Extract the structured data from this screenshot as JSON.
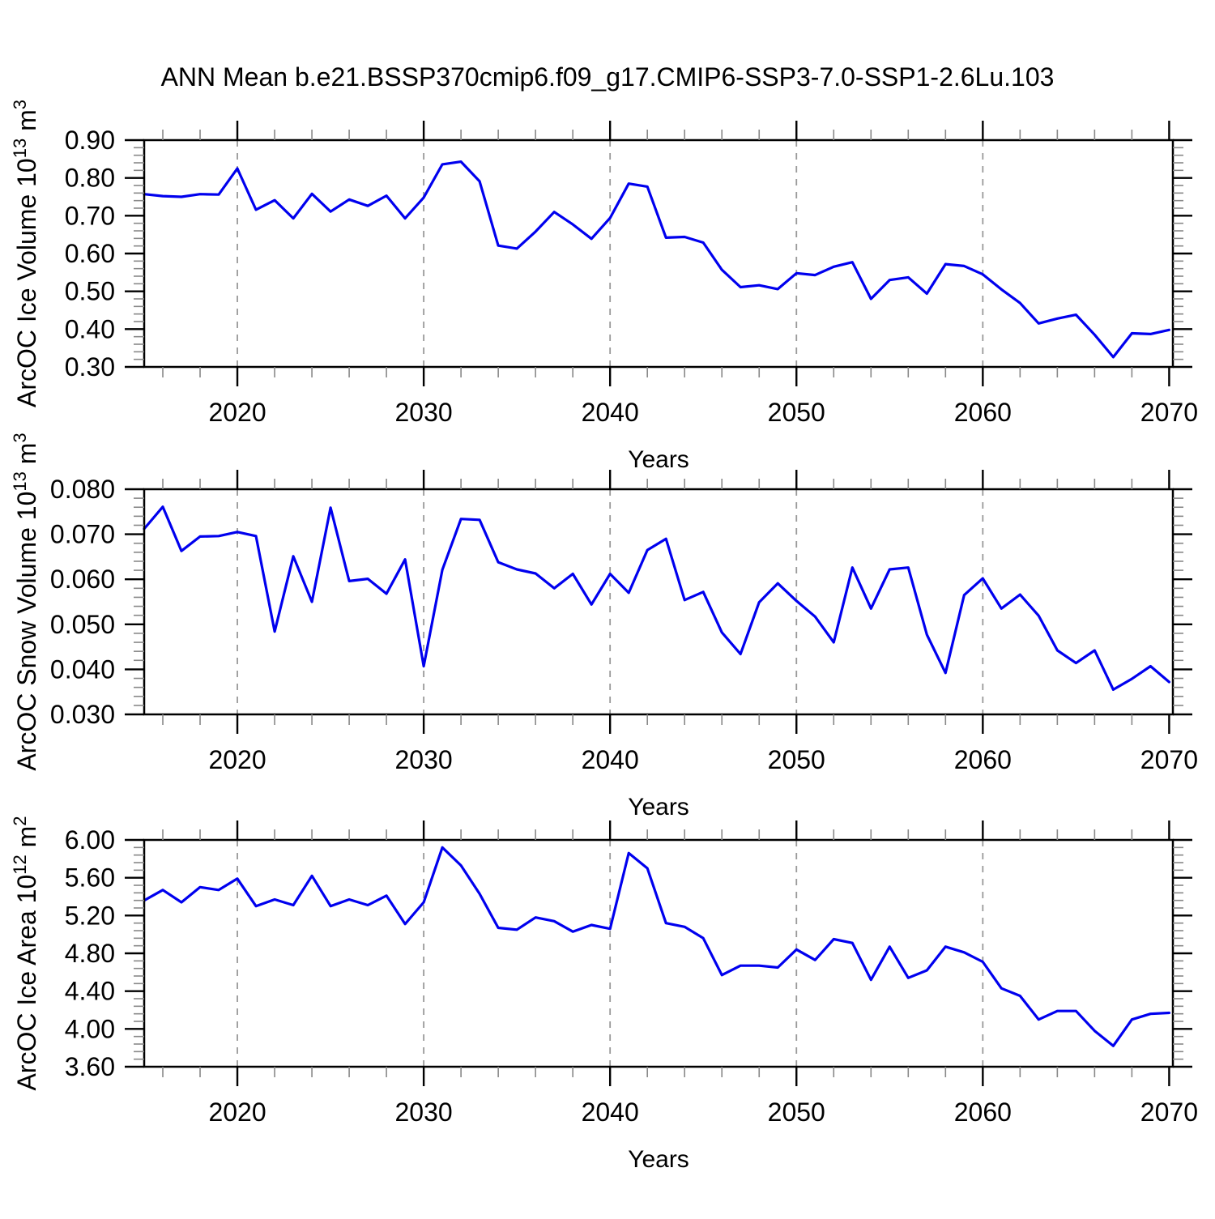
{
  "chart_data": {
    "type": "line",
    "title": "ANN Mean b.e21.BSSP370cmip6.f09_g17.CMIP6-SSP3-7.0-SSP1-2.6Lu.103",
    "xlabel": "Years",
    "line_color": "#0000ee",
    "grid_color": "#999999",
    "frame_color": "#000000",
    "x": {
      "min": 2015,
      "max": 2070.2,
      "major_ticks": [
        2020,
        2030,
        2040,
        2050,
        2060,
        2070
      ],
      "minor_step": 2,
      "gridline_years": [
        2020,
        2030,
        2040,
        2050,
        2060
      ],
      "grid_on": true,
      "legend": "none"
    },
    "years": [
      2015,
      2016,
      2017,
      2018,
      2019,
      2020,
      2021,
      2022,
      2023,
      2024,
      2025,
      2026,
      2027,
      2028,
      2029,
      2030,
      2031,
      2032,
      2033,
      2034,
      2035,
      2036,
      2037,
      2038,
      2039,
      2040,
      2041,
      2042,
      2043,
      2044,
      2045,
      2046,
      2047,
      2048,
      2049,
      2050,
      2051,
      2052,
      2053,
      2054,
      2055,
      2056,
      2057,
      2058,
      2059,
      2060,
      2061,
      2062,
      2063,
      2064,
      2065,
      2066,
      2067,
      2068,
      2069,
      2070
    ],
    "panels": [
      {
        "id": "ice-volume",
        "ylabel_text": "ArcOC Ice Volume 10^13 m^3",
        "ylabel_parts": [
          {
            "t": "ArcOC Ice Volume 10"
          },
          {
            "t": "13",
            "sup": true
          },
          {
            "t": " m"
          },
          {
            "t": "3",
            "sup": true
          }
        ],
        "ylim": [
          0.3,
          0.9
        ],
        "ytick_step": 0.1,
        "yminor_step": 0.02,
        "ytick_decimals": 2,
        "values": [
          0.757,
          0.752,
          0.75,
          0.757,
          0.756,
          0.825,
          0.716,
          0.741,
          0.693,
          0.758,
          0.711,
          0.743,
          0.726,
          0.753,
          0.693,
          0.748,
          0.836,
          0.843,
          0.791,
          0.621,
          0.613,
          0.658,
          0.71,
          0.677,
          0.639,
          0.694,
          0.785,
          0.777,
          0.642,
          0.644,
          0.629,
          0.557,
          0.511,
          0.516,
          0.506,
          0.548,
          0.543,
          0.565,
          0.577,
          0.48,
          0.53,
          0.537,
          0.494,
          0.572,
          0.567,
          0.545,
          0.505,
          0.469,
          0.415,
          0.428,
          0.438,
          0.385,
          0.326,
          0.389,
          0.387,
          0.398
        ]
      },
      {
        "id": "snow-volume",
        "ylabel_text": "ArcOC Snow Volume 10^13 m^3",
        "ylabel_parts": [
          {
            "t": "ArcOC Snow Volume 10"
          },
          {
            "t": "13",
            "sup": true
          },
          {
            "t": " m"
          },
          {
            "t": "3",
            "sup": true
          }
        ],
        "ylim": [
          0.03,
          0.08
        ],
        "ytick_step": 0.01,
        "yminor_step": 0.002,
        "ytick_decimals": 3,
        "values": [
          0.0712,
          0.0761,
          0.0663,
          0.0695,
          0.0696,
          0.0705,
          0.0696,
          0.0484,
          0.0651,
          0.055,
          0.0759,
          0.0596,
          0.0601,
          0.0568,
          0.0644,
          0.0407,
          0.0621,
          0.0734,
          0.0732,
          0.0638,
          0.0622,
          0.0613,
          0.058,
          0.0612,
          0.0544,
          0.0612,
          0.057,
          0.0665,
          0.069,
          0.0554,
          0.0572,
          0.0482,
          0.0434,
          0.0549,
          0.0591,
          0.0552,
          0.0517,
          0.046,
          0.0626,
          0.0535,
          0.0622,
          0.0626,
          0.0477,
          0.0392,
          0.0565,
          0.0602,
          0.0535,
          0.0566,
          0.0519,
          0.0442,
          0.0414,
          0.0442,
          0.0355,
          0.0379,
          0.0407,
          0.0372
        ]
      },
      {
        "id": "ice-area",
        "ylabel_text": "ArcOC Ice Area 10^12 m^2",
        "ylabel_parts": [
          {
            "t": "ArcOC Ice Area 10"
          },
          {
            "t": "12",
            "sup": true
          },
          {
            "t": " m"
          },
          {
            "t": "2",
            "sup": true
          }
        ],
        "ylim": [
          3.6,
          6.0
        ],
        "ytick_step": 0.4,
        "yminor_step": 0.08,
        "ytick_decimals": 2,
        "values": [
          5.36,
          5.47,
          5.34,
          5.5,
          5.47,
          5.59,
          5.3,
          5.37,
          5.31,
          5.62,
          5.3,
          5.37,
          5.31,
          5.41,
          5.11,
          5.34,
          5.92,
          5.73,
          5.43,
          5.07,
          5.05,
          5.18,
          5.14,
          5.03,
          5.1,
          5.06,
          5.86,
          5.7,
          5.12,
          5.08,
          4.96,
          4.57,
          4.67,
          4.67,
          4.65,
          4.84,
          4.73,
          4.95,
          4.91,
          4.52,
          4.87,
          4.54,
          4.62,
          4.87,
          4.81,
          4.71,
          4.43,
          4.35,
          4.1,
          4.19,
          4.19,
          3.98,
          3.82,
          4.1,
          4.16,
          4.17
        ]
      }
    ]
  }
}
